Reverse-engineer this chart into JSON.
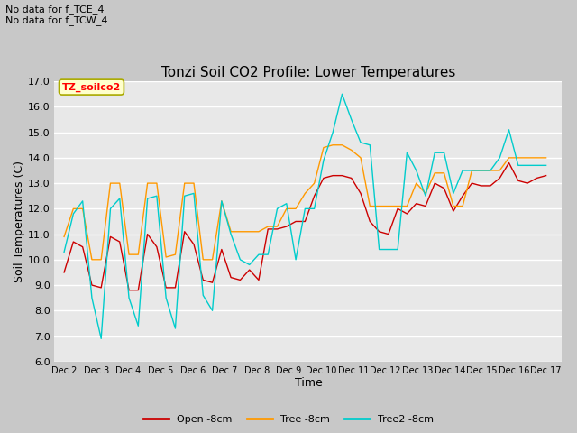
{
  "title": "Tonzi Soil CO2 Profile: Lower Temperatures",
  "xlabel": "Time",
  "ylabel": "Soil Temperatures (C)",
  "ylim": [
    6.0,
    17.0
  ],
  "yticks": [
    6.0,
    7.0,
    8.0,
    9.0,
    10.0,
    11.0,
    12.0,
    13.0,
    14.0,
    15.0,
    16.0,
    17.0
  ],
  "fig_bg_color": "#c8c8c8",
  "plot_bg_color": "#e8e8e8",
  "annotation_top_left": "No data for f_TCE_4\nNo data for f_TCW_4",
  "legend_box_label": "TZ_soilco2",
  "legend_box_color": "#ffffcc",
  "legend_box_border": "#aaaa00",
  "series_colors": {
    "open": "#cc0000",
    "tree": "#ff9900",
    "tree2": "#00cccc"
  },
  "series_labels": {
    "open": "Open -8cm",
    "tree": "Tree -8cm",
    "tree2": "Tree2 -8cm"
  },
  "x_tick_labels": [
    "Dec 2",
    "Dec 3",
    "Dec 4",
    "Dec 5",
    "Dec 6",
    "Dec 7",
    "Dec 8",
    "Dec 9",
    "Dec 10",
    "Dec 11",
    "Dec 12",
    "Dec 13",
    "Dec 14",
    "Dec 15",
    "Dec 16",
    "Dec 17"
  ],
  "open_8cm": [
    9.5,
    10.7,
    10.5,
    9.0,
    8.9,
    10.9,
    10.7,
    8.8,
    8.8,
    11.0,
    10.5,
    8.9,
    8.9,
    11.1,
    10.6,
    9.2,
    9.1,
    10.4,
    9.3,
    9.2,
    9.6,
    9.2,
    11.2,
    11.2,
    11.3,
    11.5,
    11.5,
    12.5,
    13.2,
    13.3,
    13.3,
    13.2,
    12.6,
    11.5,
    11.1,
    11.0,
    12.0,
    11.8,
    12.2,
    12.1,
    13.0,
    12.8,
    11.9,
    12.5,
    13.0,
    12.9,
    12.9,
    13.2,
    13.8,
    13.1,
    13.0,
    13.2,
    13.3
  ],
  "tree_8cm": [
    10.9,
    12.0,
    12.0,
    10.0,
    10.0,
    13.0,
    13.0,
    10.2,
    10.2,
    13.0,
    13.0,
    10.1,
    10.2,
    13.0,
    13.0,
    10.0,
    10.0,
    12.3,
    11.1,
    11.1,
    11.1,
    11.1,
    11.3,
    11.3,
    12.0,
    12.0,
    12.6,
    13.0,
    14.4,
    14.5,
    14.5,
    14.3,
    14.0,
    12.1,
    12.1,
    12.1,
    12.1,
    12.1,
    13.0,
    12.6,
    13.4,
    13.4,
    12.1,
    12.1,
    13.5,
    13.5,
    13.5,
    13.5,
    14.0,
    14.0,
    14.0,
    14.0,
    14.0
  ],
  "tree2_8cm": [
    10.3,
    11.8,
    12.3,
    8.5,
    6.9,
    12.0,
    12.4,
    8.5,
    7.4,
    12.4,
    12.5,
    8.5,
    7.3,
    12.5,
    12.6,
    8.6,
    8.0,
    12.3,
    11.0,
    10.0,
    9.8,
    10.2,
    10.2,
    12.0,
    12.2,
    10.0,
    12.0,
    12.0,
    13.9,
    15.0,
    16.5,
    15.5,
    14.6,
    14.5,
    10.4,
    10.4,
    10.4,
    14.2,
    13.5,
    12.5,
    14.2,
    14.2,
    12.6,
    13.5,
    13.5,
    13.5,
    13.5,
    14.0,
    15.1,
    13.7,
    13.7,
    13.7,
    13.7
  ]
}
